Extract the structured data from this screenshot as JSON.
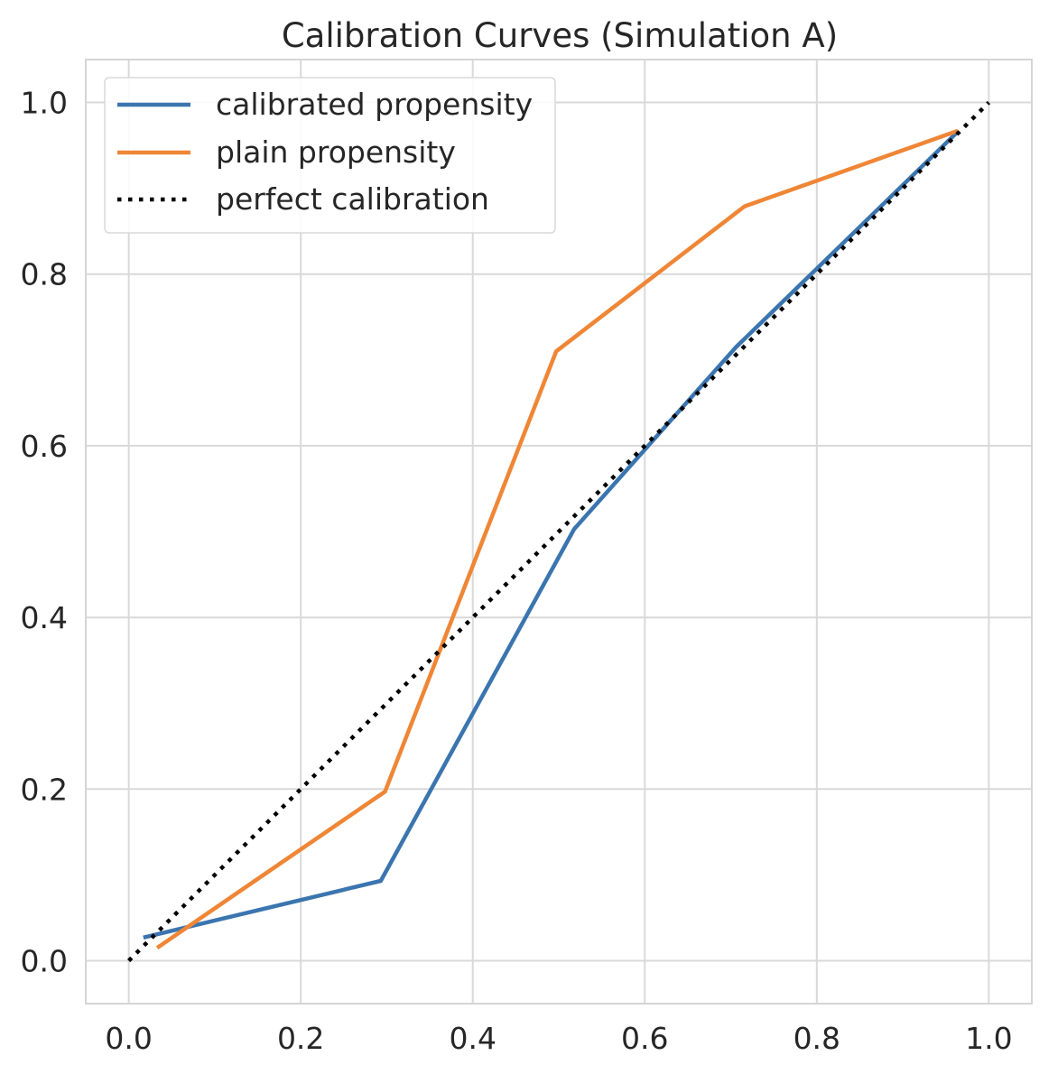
{
  "chart_data": {
    "type": "line",
    "title": "Calibration Curves (Simulation A)",
    "xlabel": "",
    "ylabel": "",
    "xlim": [
      -0.05,
      1.05
    ],
    "ylim": [
      -0.05,
      1.05
    ],
    "grid": true,
    "legend_position": "top-left",
    "x_ticks": [
      0.0,
      0.2,
      0.4,
      0.6,
      0.8,
      1.0
    ],
    "x_tick_labels": [
      "0.0",
      "0.2",
      "0.4",
      "0.6",
      "0.8",
      "1.0"
    ],
    "y_ticks": [
      0.0,
      0.2,
      0.4,
      0.6,
      0.8,
      1.0
    ],
    "y_tick_labels": [
      "0.0",
      "0.2",
      "0.4",
      "0.6",
      "0.8",
      "1.0"
    ],
    "series": [
      {
        "name": "calibrated propensity",
        "color": "#3b75af",
        "style": "solid",
        "x": [
          0.017,
          0.293,
          0.518,
          0.706,
          0.963
        ],
        "y": [
          0.027,
          0.093,
          0.503,
          0.715,
          0.965
        ]
      },
      {
        "name": "plain propensity",
        "color": "#ef8636",
        "style": "solid",
        "x": [
          0.033,
          0.298,
          0.497,
          0.716,
          0.964
        ],
        "y": [
          0.015,
          0.197,
          0.71,
          0.879,
          0.967
        ]
      },
      {
        "name": "perfect calibration",
        "color": "#000000",
        "style": "dotted",
        "x": [
          0.0,
          1.0
        ],
        "y": [
          0.0,
          1.0
        ]
      }
    ]
  }
}
